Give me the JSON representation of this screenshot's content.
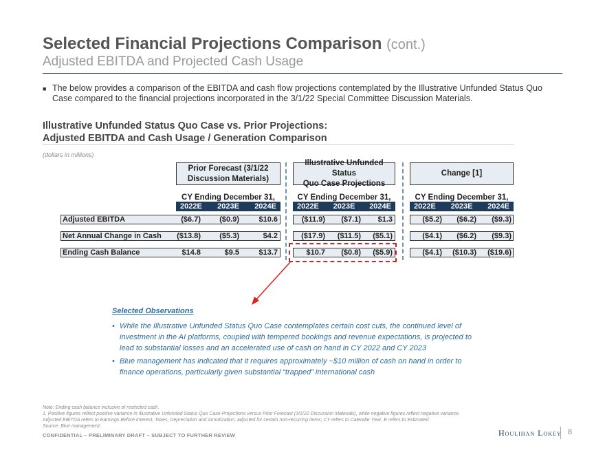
{
  "header": {
    "title": "Selected Financial Projections Comparison",
    "title_cont": "(cont.)",
    "subtitle": "Adjusted EBITDA and Projected Cash Usage"
  },
  "intro_bullet": "The below provides a comparison of the EBITDA and cash flow projections contemplated by the Illustrative Unfunded Status Quo Case compared to the financial projections incorporated in the 3/1/22 Special Committee Discussion Materials.",
  "section": {
    "line1": "Illustrative Unfunded Status Quo Case vs. Prior Projections:",
    "line2": "Adjusted EBITDA and Cash Usage / Generation Comparison",
    "units": "(dollars in millions)"
  },
  "table": {
    "groups": [
      {
        "header_line1": "Prior Forecast (3/1/22",
        "header_line2": "Discussion Materials)",
        "cy_label": "CY Ending December 31,",
        "years": [
          "2022E",
          "2023E",
          "2024E"
        ]
      },
      {
        "header_line1": "Illustrative Unfunded Status",
        "header_line2": "Quo Case Projections",
        "cy_label": "CY Ending December 31,",
        "years": [
          "2022E",
          "2023E",
          "2024E"
        ]
      },
      {
        "header_line1": "Change [1]",
        "header_line2": "",
        "cy_label": "CY Ending December 31,",
        "years": [
          "2022E",
          "2023E",
          "2024E"
        ]
      }
    ],
    "rows": [
      {
        "label": "Adjusted EBITDA",
        "values": [
          [
            "($6.7)",
            "($0.9)",
            "$10.6"
          ],
          [
            "($11.9)",
            "($7.1)",
            "$1.3"
          ],
          [
            "($5.2)",
            "($6.2)",
            "($9.3)"
          ]
        ]
      },
      {
        "label": "Net Annual Change in Cash",
        "values": [
          [
            "($13.8)",
            "($5.3)",
            "$4.2"
          ],
          [
            "($17.9)",
            "($11.5)",
            "($5.1)"
          ],
          [
            "($4.1)",
            "($6.2)",
            "($9.3)"
          ]
        ]
      },
      {
        "label": "Ending Cash Balance",
        "values": [
          [
            "$14.8",
            "$9.5",
            "$13.7"
          ],
          [
            "$10.7",
            "($0.8)",
            "($5.9)"
          ],
          [
            "($4.1)",
            "($10.3)",
            "($19.6)"
          ]
        ]
      }
    ]
  },
  "observations": {
    "title": "Selected Observations",
    "bullet_symbol": "•",
    "items": [
      "While the Illustrative Unfunded Status Quo Case contemplates certain cost cuts, the continued level of investment in the AI platforms, coupled with tempered bookings and revenue expectations, is projected to lead to substantial losses and an accelerated use of cash on hand in CY 2022 and CY 2023",
      "Blue management has indicated that it requires approximately ~$10 million of cash on hand in order to finance operations, particularly given substantial “trapped” international cash"
    ]
  },
  "footnotes": [
    "Note: Ending cash balance inclusive of restricted cash.",
    "1. Positive figures reflect positive variance in Illustrative Unfunded Status Quo Case Projections versus Prior Forecast (3/1/22 Discussion Materials), while negative figures reflect negative variance.",
    "Adjusted EBITDA refers to Earnings Before Interest, Taxes, Depreciation and Amortization, adjusted for certain non-recurring items; CY refers to Calendar Year; E refers to Estimated.",
    "Source: Blue management."
  ],
  "footer": {
    "confidential": "CONFIDENTIAL – PRELIMINARY DRAFT – SUBJECT TO FURTHER REVIEW",
    "logo": "Houlihan Lokey",
    "page_number": "8"
  },
  "colors": {
    "navy": "#1f3b5c",
    "box_fill": "#e8edf3",
    "observation_blue": "#2e6e9e",
    "highlight_red": "#e02020"
  }
}
